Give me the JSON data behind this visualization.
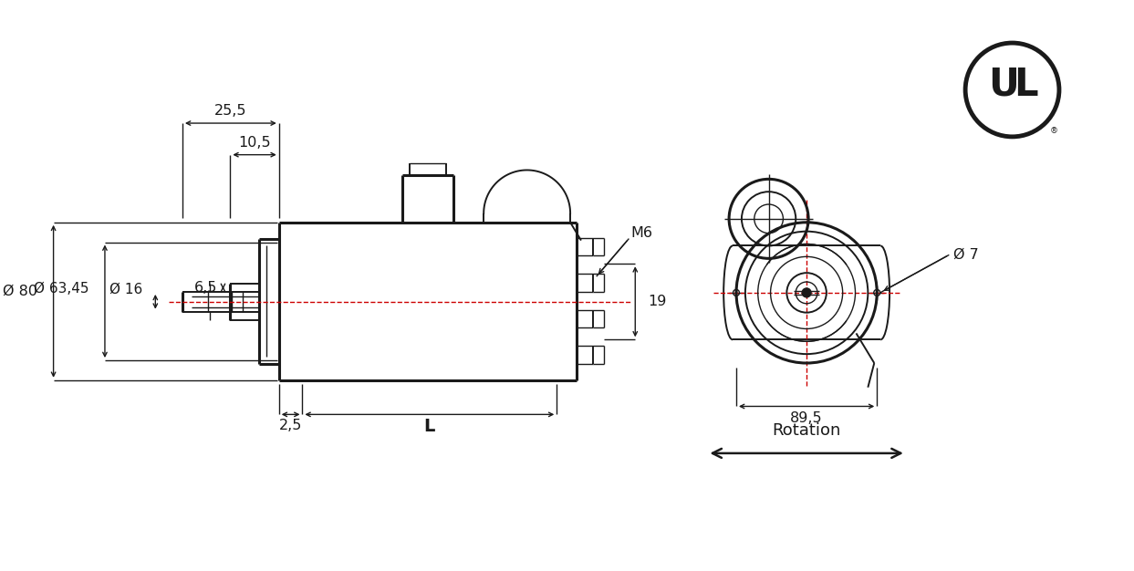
{
  "bg_color": "#ffffff",
  "line_color": "#1a1a1a",
  "dim_color": "#1a1a1a",
  "red_line_color": "#cc0000",
  "figsize": [
    12.43,
    6.26
  ],
  "dpi": 100,
  "annotations": {
    "d80": "Ø 80",
    "d63": "Ø 63,45",
    "d16": "Ø 16",
    "dim_25_5": "25,5",
    "dim_10_5": "10,5",
    "dim_6_5": "6,5",
    "dim_2_5": "2,5",
    "dim_L": "L",
    "dim_19": "19",
    "dim_M6": "M6",
    "dim_89_5": "89,5",
    "dim_d7": "Ø 7",
    "rotation": "Rotation"
  }
}
